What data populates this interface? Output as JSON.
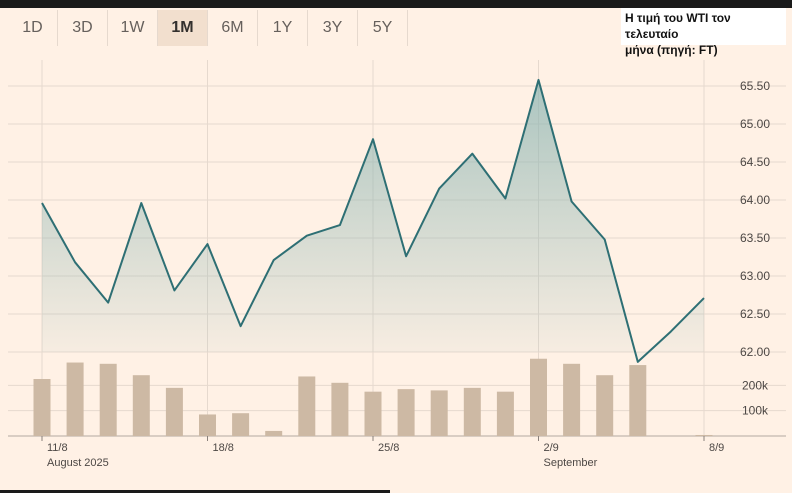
{
  "tabs": [
    {
      "label": "1D",
      "active": false
    },
    {
      "label": "3D",
      "active": false
    },
    {
      "label": "1W",
      "active": false
    },
    {
      "label": "1M",
      "active": true
    },
    {
      "label": "6M",
      "active": false
    },
    {
      "label": "1Y",
      "active": false
    },
    {
      "label": "3Y",
      "active": false
    },
    {
      "label": "5Y",
      "active": false
    }
  ],
  "caption": {
    "line1": "Η τιμή του WTI τον τελευταίο",
    "line2": "μήνα (πηγή: FT)"
  },
  "colors": {
    "background": "#fff1e5",
    "line": "#2e6f74",
    "area_top": "#8fb6b3",
    "bars": "#cdb9a4",
    "grid": "#e6d9ce"
  },
  "chart_data": {
    "type": "line",
    "price_axis": {
      "range": [
        62.0,
        65.5
      ],
      "ticks": [
        "65.50",
        "65.00",
        "64.50",
        "64.00",
        "63.50",
        "63.00",
        "62.50",
        "62.00"
      ],
      "tick_values": [
        65.5,
        65.0,
        64.5,
        64.0,
        63.5,
        63.0,
        62.5,
        62.0
      ]
    },
    "volume_axis": {
      "ticks": [
        "200k",
        "100k"
      ],
      "tick_values": [
        200000,
        100000
      ],
      "max": 300000
    },
    "x_ticks": [
      {
        "label": "11/8",
        "sub": "August 2025",
        "index": 0
      },
      {
        "label": "18/8",
        "sub": "",
        "index": 5
      },
      {
        "label": "25/8",
        "sub": "",
        "index": 10
      },
      {
        "label": "2/9",
        "sub": "September",
        "index": 15
      },
      {
        "label": "8/9",
        "sub": "",
        "index": 20
      }
    ],
    "series": [
      {
        "kind": "price",
        "values": [
          63.96,
          63.18,
          62.65,
          63.96,
          62.81,
          63.42,
          62.34,
          63.21,
          63.53,
          63.67,
          64.8,
          63.26,
          64.15,
          64.61,
          64.02,
          65.58,
          63.98,
          63.48,
          61.87,
          62.27,
          62.71
        ]
      },
      {
        "kind": "volume",
        "values": [
          225000,
          290000,
          285000,
          240000,
          190000,
          85000,
          90000,
          20000,
          235000,
          210000,
          175000,
          185000,
          180000,
          190000,
          175000,
          305000,
          285000,
          240000,
          280000,
          0,
          4000
        ]
      }
    ]
  }
}
